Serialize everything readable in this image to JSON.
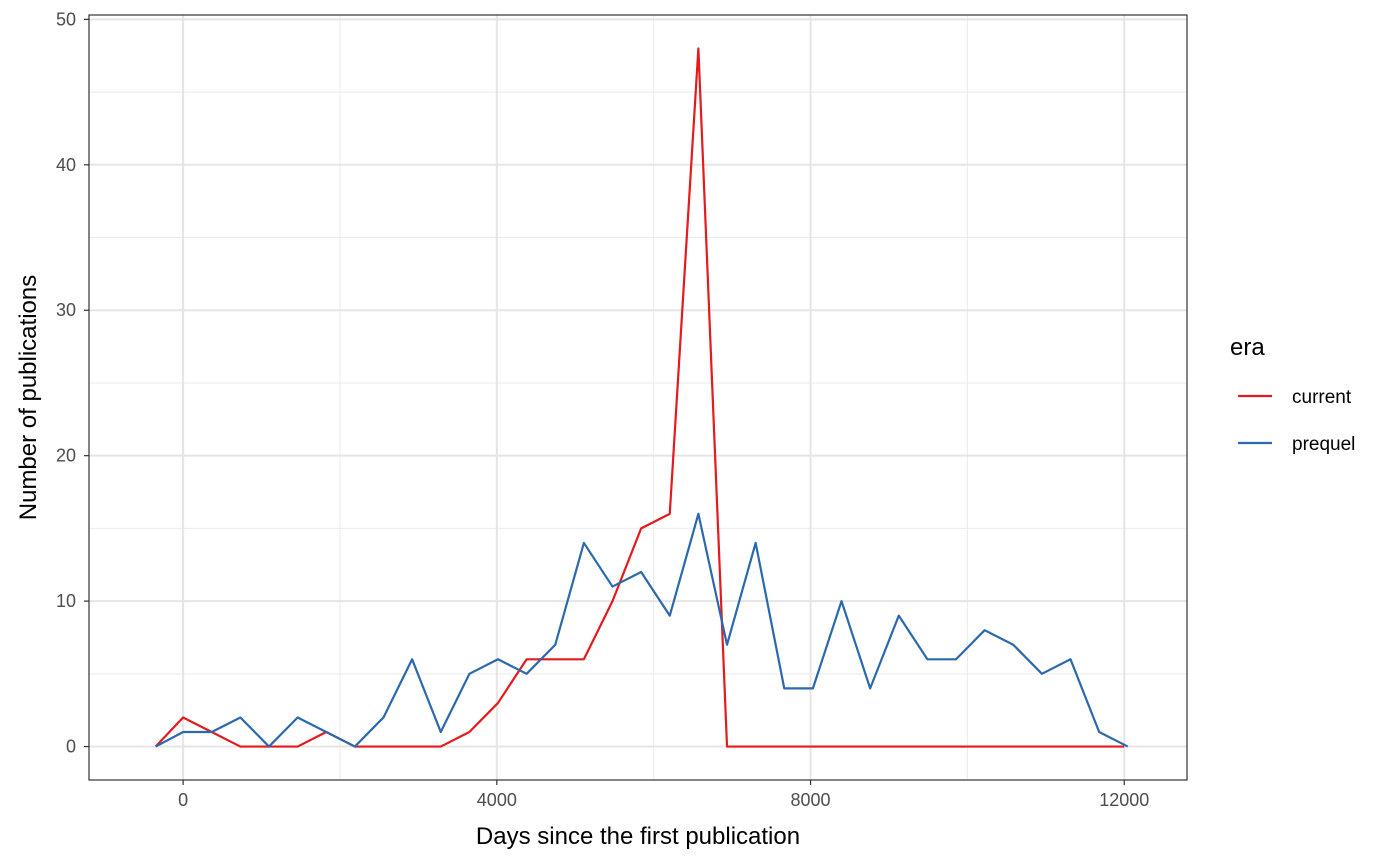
{
  "chart_data": {
    "type": "line",
    "xlabel": "Days since the first publication",
    "ylabel": "Number of publications",
    "xlim": [
      -1200,
      12800
    ],
    "ylim": [
      -2.3,
      50.3
    ],
    "x_ticks": [
      0,
      4000,
      8000,
      12000
    ],
    "y_ticks": [
      0,
      10,
      20,
      30,
      40,
      50
    ],
    "grid": true,
    "legend": {
      "title": "era",
      "position": "right"
    },
    "series": [
      {
        "name": "current",
        "color": "#e41a1c",
        "points": [
          [
            -350,
            0
          ],
          [
            0,
            2
          ],
          [
            365,
            1
          ],
          [
            730,
            0
          ],
          [
            1095,
            0
          ],
          [
            1460,
            0
          ],
          [
            1825,
            1
          ],
          [
            2190,
            0
          ],
          [
            2555,
            0
          ],
          [
            2920,
            0
          ],
          [
            3285,
            0
          ],
          [
            3650,
            1
          ],
          [
            4015,
            3
          ],
          [
            4380,
            6
          ],
          [
            4745,
            6
          ],
          [
            5110,
            6
          ],
          [
            5475,
            10
          ],
          [
            5840,
            15
          ],
          [
            6205,
            16
          ],
          [
            6570,
            48
          ],
          [
            6935,
            0
          ],
          [
            7300,
            0
          ],
          [
            8000,
            0
          ],
          [
            10000,
            0
          ],
          [
            12000,
            0
          ]
        ]
      },
      {
        "name": "prequel",
        "color": "#2c69ac",
        "points": [
          [
            -350,
            0
          ],
          [
            0,
            1
          ],
          [
            365,
            1
          ],
          [
            730,
            2
          ],
          [
            1095,
            0
          ],
          [
            1460,
            2
          ],
          [
            1825,
            1
          ],
          [
            2190,
            0
          ],
          [
            2555,
            2
          ],
          [
            2920,
            6
          ],
          [
            3285,
            1
          ],
          [
            3650,
            5
          ],
          [
            4015,
            6
          ],
          [
            4380,
            5
          ],
          [
            4745,
            7
          ],
          [
            5110,
            14
          ],
          [
            5475,
            11
          ],
          [
            5840,
            12
          ],
          [
            6205,
            9
          ],
          [
            6570,
            16
          ],
          [
            6935,
            7
          ],
          [
            7300,
            14
          ],
          [
            7665,
            4
          ],
          [
            8030,
            4
          ],
          [
            8395,
            10
          ],
          [
            8760,
            4
          ],
          [
            9125,
            9
          ],
          [
            9490,
            6
          ],
          [
            9855,
            6
          ],
          [
            10220,
            8
          ],
          [
            10585,
            7
          ],
          [
            10950,
            5
          ],
          [
            11315,
            6
          ],
          [
            11680,
            1
          ],
          [
            12045,
            0
          ]
        ]
      }
    ]
  }
}
